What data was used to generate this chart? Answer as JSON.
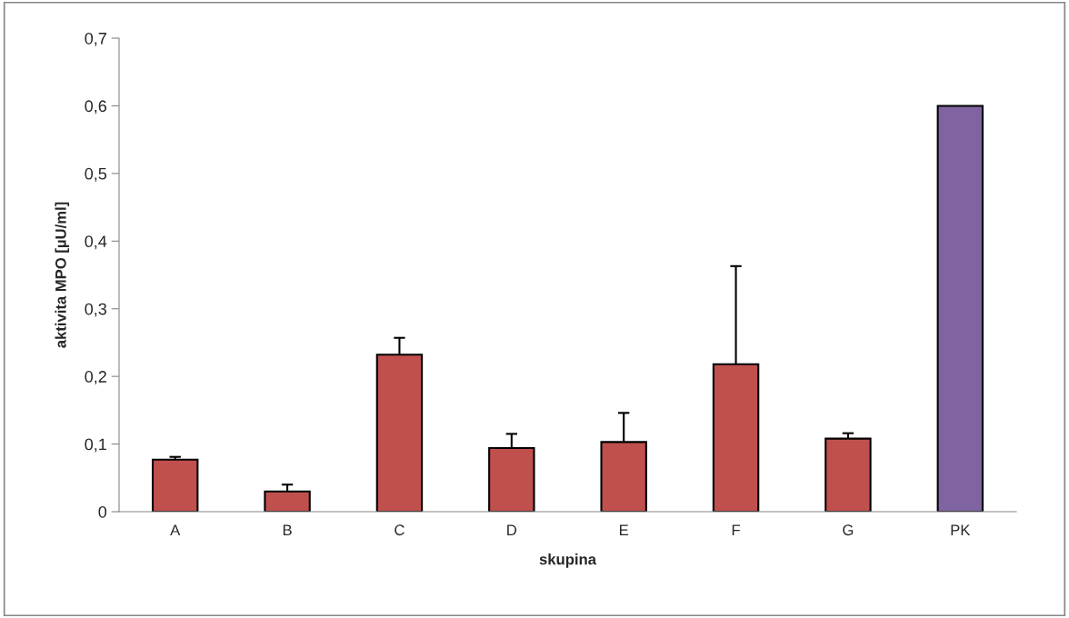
{
  "chart_data": {
    "type": "bar",
    "xlabel": "skupina",
    "ylabel": "aktivita MPO [µU/ml]",
    "categories": [
      "A",
      "B",
      "C",
      "D",
      "E",
      "F",
      "G",
      "PK"
    ],
    "values": [
      0.077,
      0.03,
      0.232,
      0.094,
      0.103,
      0.218,
      0.108,
      0.6
    ],
    "colors": [
      "#c0504d",
      "#c0504d",
      "#c0504d",
      "#c0504d",
      "#c0504d",
      "#c0504d",
      "#c0504d",
      "#8064a2"
    ],
    "errors": [
      [
        0.077,
        0.081
      ],
      [
        0.03,
        0.04
      ],
      [
        0.232,
        0.257
      ],
      [
        0.094,
        0.115
      ],
      [
        0.103,
        0.146
      ],
      [
        0.218,
        0.363
      ],
      [
        0.108,
        0.116
      ],
      null
    ],
    "ylim": [
      0,
      0.7
    ],
    "yticks": [
      {
        "value": 0,
        "label": "0"
      },
      {
        "value": 0.1,
        "label": "0,1"
      },
      {
        "value": 0.2,
        "label": "0,2"
      },
      {
        "value": 0.3,
        "label": "0,3"
      },
      {
        "value": 0.4,
        "label": "0,4"
      },
      {
        "value": 0.5,
        "label": "0,5"
      },
      {
        "value": 0.6,
        "label": "0,6"
      },
      {
        "value": 0.7,
        "label": "0,7"
      }
    ],
    "grid": false,
    "legend": false
  }
}
